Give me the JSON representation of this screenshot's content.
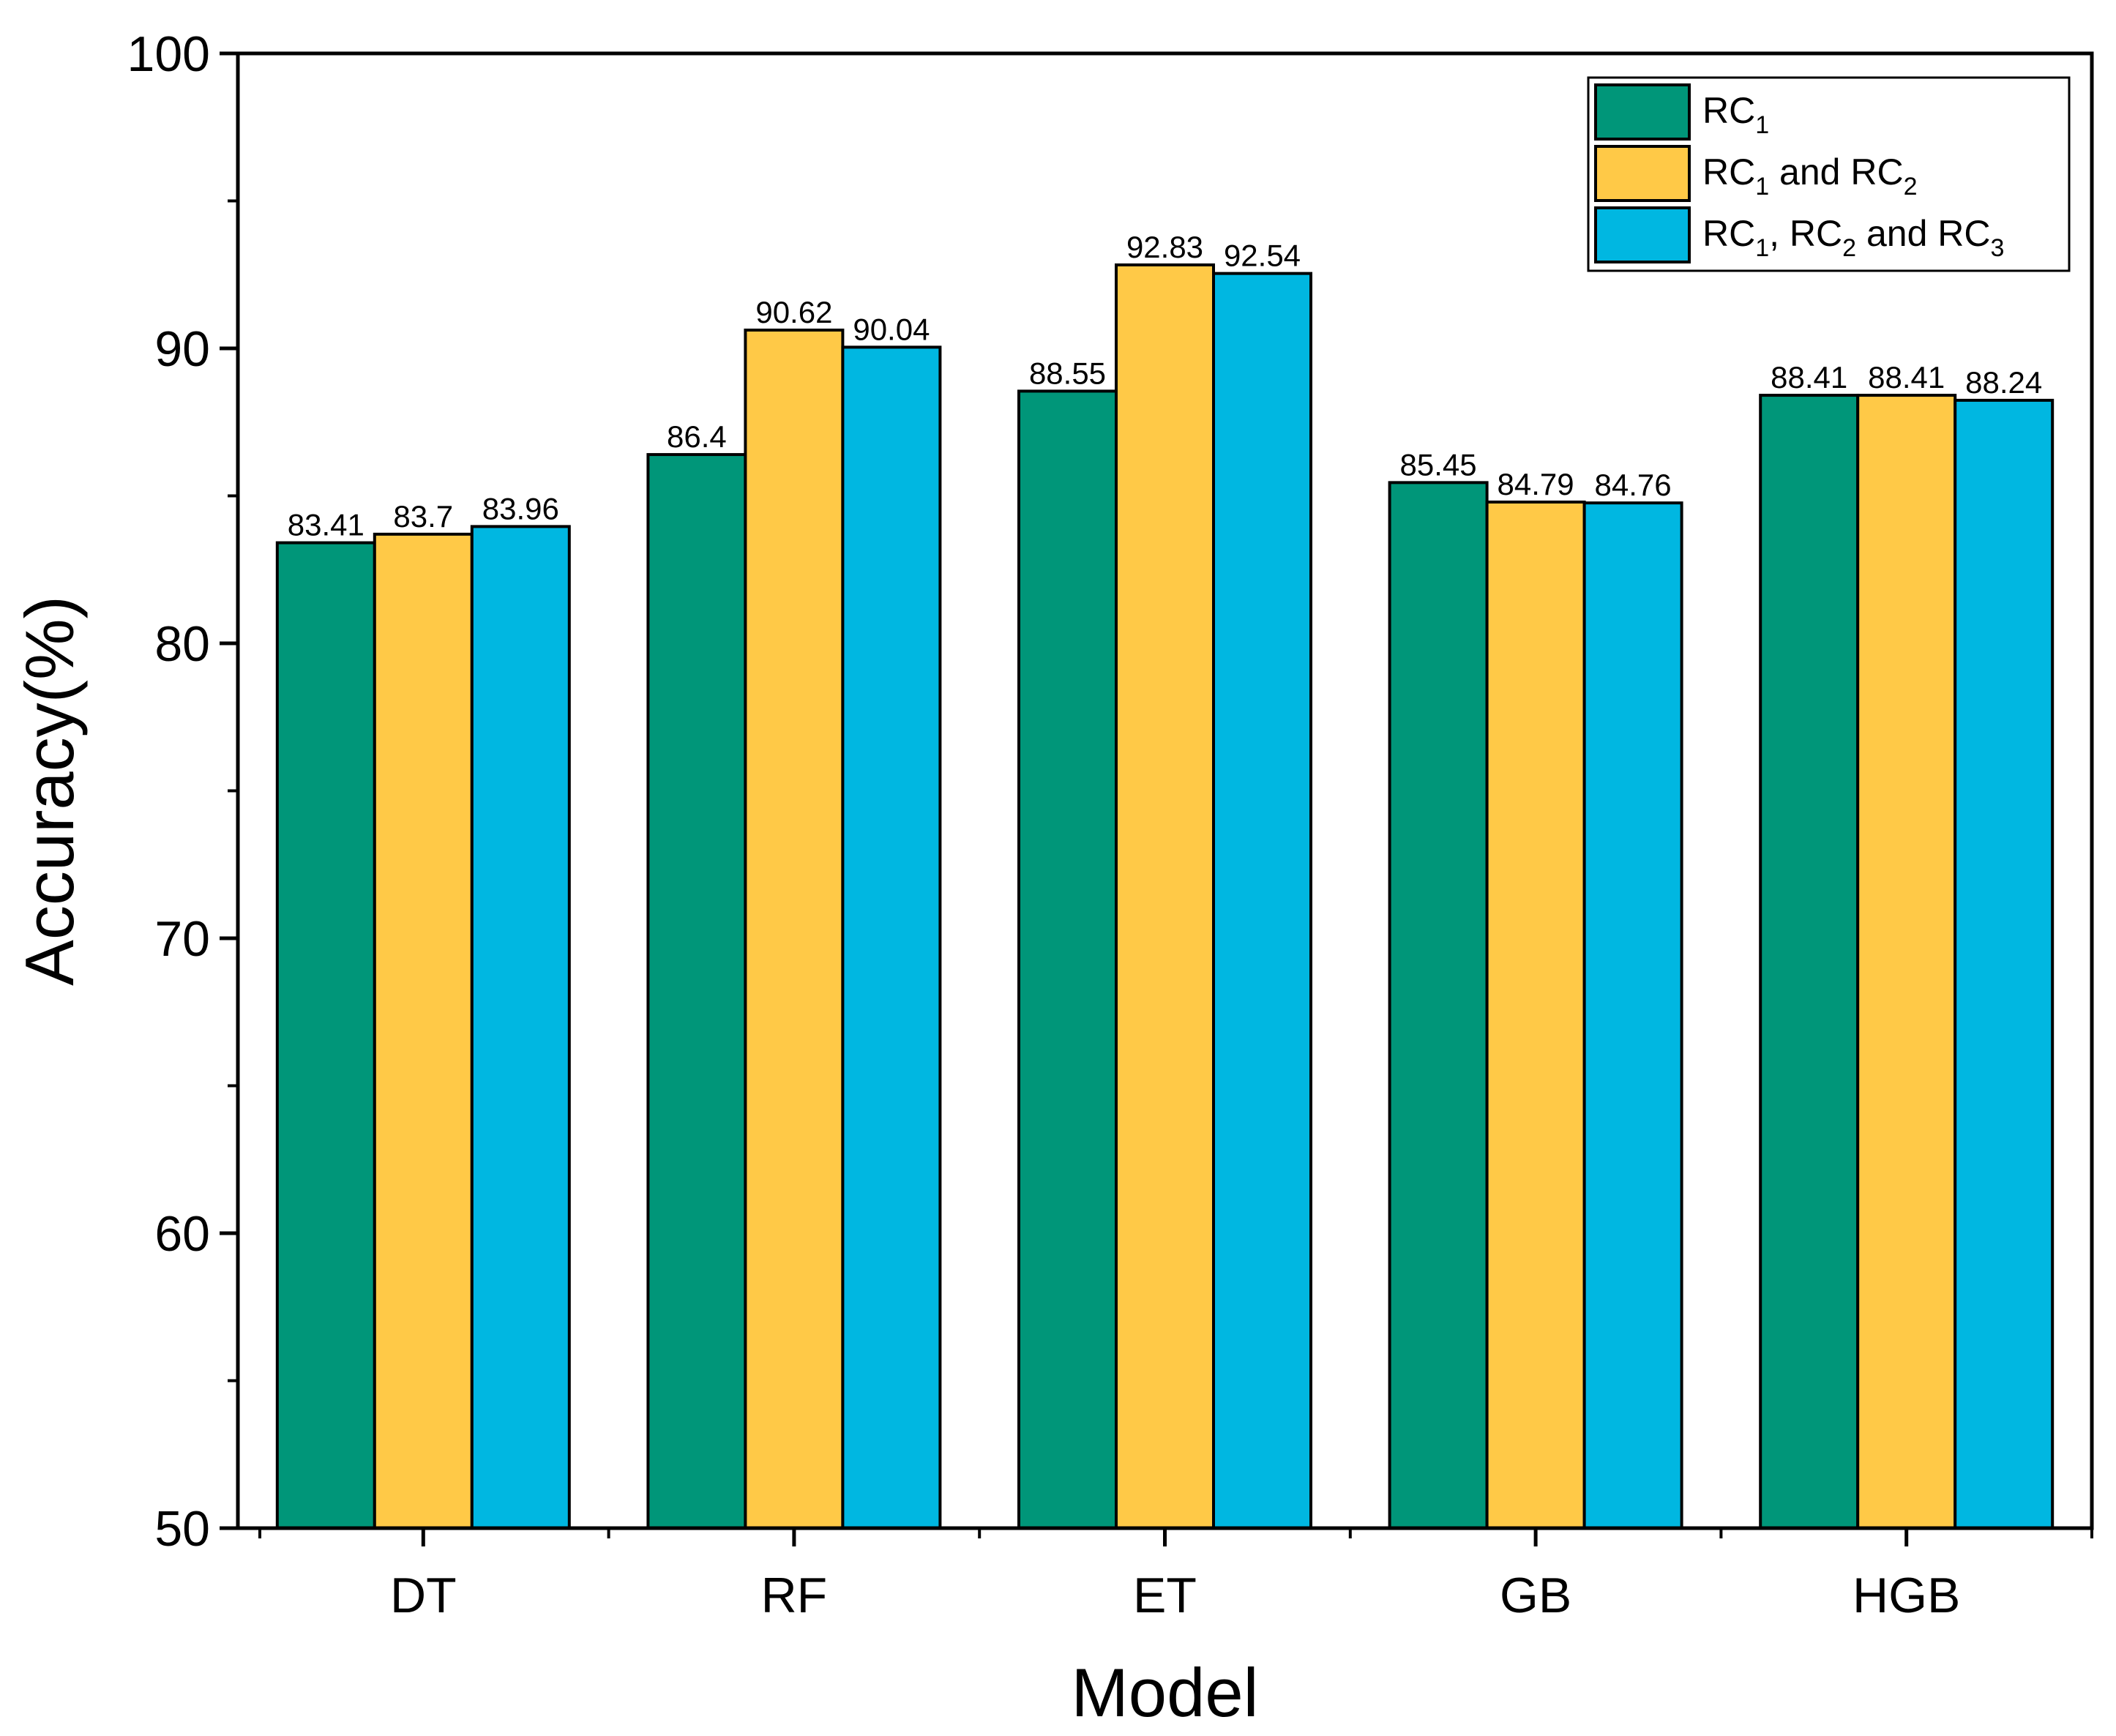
{
  "chart_data": {
    "type": "bar",
    "title": "",
    "xlabel": "Model",
    "ylabel": "Accuracy(%)",
    "ylim": [
      50,
      100
    ],
    "yticks": [
      50,
      60,
      70,
      80,
      90,
      100
    ],
    "categories": [
      "DT",
      "RF",
      "ET",
      "GB",
      "HGB"
    ],
    "grid": false,
    "legend_position": "top-right",
    "series": [
      {
        "name": "RC1",
        "legend": [
          {
            "t": "RC",
            "sub": false
          },
          {
            "t": "1",
            "sub": true
          }
        ],
        "color": "#009679",
        "values": [
          83.41,
          86.4,
          88.55,
          85.45,
          88.41
        ],
        "labels": [
          "83.41",
          "86.4",
          "88.55",
          "85.45",
          "88.41"
        ]
      },
      {
        "name": "RC1 and RC2",
        "legend": [
          {
            "t": "RC",
            "sub": false
          },
          {
            "t": "1",
            "sub": true
          },
          {
            "t": " and RC",
            "sub": false
          },
          {
            "t": "2",
            "sub": true
          }
        ],
        "color": "#FFC947",
        "values": [
          83.7,
          90.62,
          92.83,
          84.79,
          88.41
        ],
        "labels": [
          "83.7",
          "90.62",
          "92.83",
          "84.79",
          "88.41"
        ]
      },
      {
        "name": "RC1, RC2 and RC3",
        "legend": [
          {
            "t": "RC",
            "sub": false
          },
          {
            "t": "1",
            "sub": true
          },
          {
            "t": ", RC",
            "sub": false
          },
          {
            "t": "2",
            "sub": true
          },
          {
            "t": " and RC",
            "sub": false
          },
          {
            "t": "3",
            "sub": true
          }
        ],
        "color": "#00B7E1",
        "values": [
          83.96,
          90.04,
          92.54,
          84.76,
          88.24
        ],
        "labels": [
          "83.96",
          "90.04",
          "92.54",
          "84.76",
          "88.24"
        ]
      }
    ]
  }
}
